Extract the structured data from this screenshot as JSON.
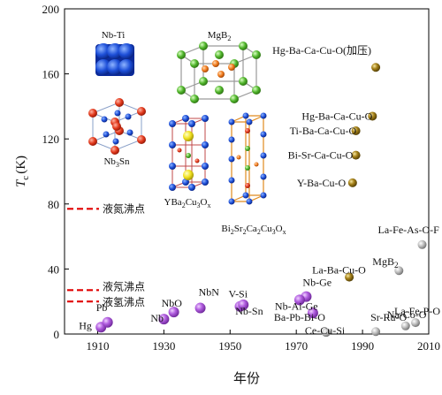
{
  "chart_data": {
    "type": "scatter",
    "xlabel": "年份",
    "ylabel_main": "T",
    "ylabel_sub": "c",
    "ylabel_unit": "(K)",
    "xlim": [
      1900,
      2010
    ],
    "ylim": [
      0,
      200
    ],
    "xticks": [
      1910,
      1930,
      1950,
      1970,
      1990,
      2010
    ],
    "yticks": [
      0,
      40,
      80,
      120,
      160,
      200
    ],
    "grid": false,
    "colors": {
      "metal": "#a24fd0",
      "cuprate": "#8b6d12",
      "iron": "#a6a6a6",
      "reference_line": "#e00000"
    },
    "series": [
      {
        "key": "metal",
        "points": [
          {
            "label": "Hg",
            "x": 1911,
            "y": 4.2
          },
          {
            "label": "Pb",
            "x": 1913,
            "y": 7.2
          },
          {
            "label": "Nb",
            "x": 1930,
            "y": 9.2
          },
          {
            "label": "NbO",
            "x": 1933,
            "y": 13.5
          },
          {
            "label": "NbN",
            "x": 1941,
            "y": 16
          },
          {
            "label": "V-Si",
            "x": 1953,
            "y": 17
          },
          {
            "label": "Nb-Sn",
            "x": 1954,
            "y": 18
          },
          {
            "label": "Nb-Ge",
            "x": 1973,
            "y": 23
          },
          {
            "label": "Nb-Ai-Ge",
            "x": 1971,
            "y": 21
          },
          {
            "label": "Ba-Pb-Bi-O",
            "x": 1975,
            "y": 13
          }
        ]
      },
      {
        "key": "cuprate",
        "points": [
          {
            "label": "La-Ba-Cu-O",
            "x": 1986,
            "y": 35
          },
          {
            "label": "Y-Ba-Cu-O",
            "x": 1987,
            "y": 93
          },
          {
            "label": "Bi-Sr-Ca-Cu-O",
            "x": 1988,
            "y": 110
          },
          {
            "label": "Ti-Ba-Ca-Cu-O",
            "x": 1988,
            "y": 125
          },
          {
            "label": "Hg-Ba-Ca-Cu-O",
            "x": 1993,
            "y": 134
          },
          {
            "label": "Hg-Ba-Ca-Cu-O(加压)",
            "x": 1994,
            "y": 164
          }
        ]
      },
      {
        "key": "iron",
        "points": [
          {
            "label": "Ce-Cu-Si",
            "x": 1979,
            "y": 1
          },
          {
            "label": "Sr-Ru-O",
            "x": 1994,
            "y": 1.5
          },
          {
            "label": "Na-Co-O",
            "x": 2003,
            "y": 5
          },
          {
            "label": "La-Fe-P-O",
            "x": 2006,
            "y": 7
          },
          {
            "label": "MgB2",
            "x": 2001,
            "y": 39
          },
          {
            "label": "La-Fe-As-O-F",
            "x": 2008,
            "y": 55
          }
        ]
      }
    ],
    "reference_lines": [
      {
        "label": "液氮沸点",
        "y": 77
      },
      {
        "label": "液氖沸点",
        "y": 27
      },
      {
        "label": "液氢沸点",
        "y": 20
      }
    ],
    "structure_labels": {
      "nbti": "Nb-Ti",
      "mgb2": "MgB",
      "mgb2_sub": "2",
      "nb3sn": "Nb",
      "nb3sn_sub": "3",
      "nb3sn_tail": "Sn",
      "ybco_a": "YBa",
      "ybco_s1": "2",
      "ybco_b": "Cu",
      "ybco_s2": "3",
      "ybco_c": "O",
      "ybco_s3": "x",
      "bscco_a": "Bi",
      "bscco_s1": "2",
      "bscco_b": "Sr",
      "bscco_s2": "2",
      "bscco_c": "Ca",
      "bscco_s3": "2",
      "bscco_d": "Cu",
      "bscco_s4": "3",
      "bscco_e": "O",
      "bscco_s5": "x"
    }
  }
}
